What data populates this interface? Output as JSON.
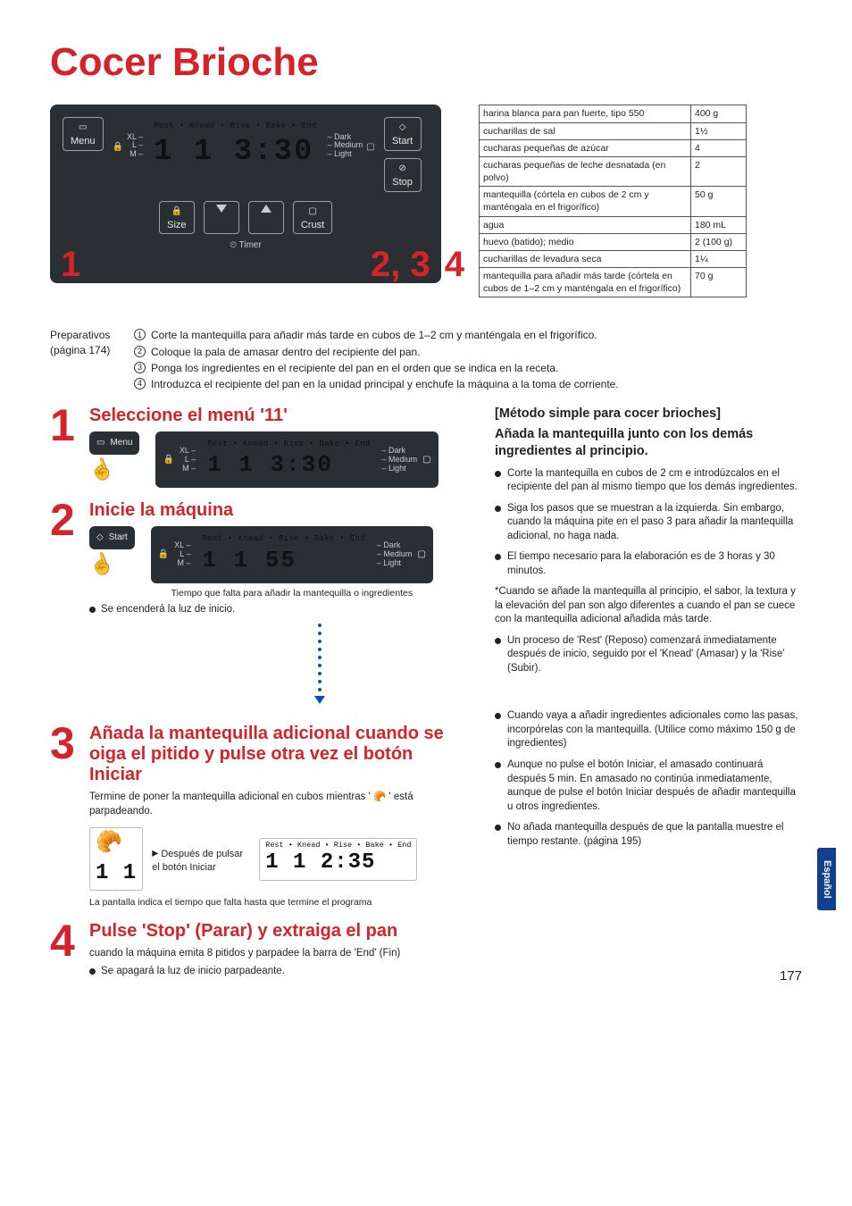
{
  "title": "Cocer Brioche",
  "panel": {
    "menu_label": "Menu",
    "size_label": "Size",
    "crust_label": "Crust",
    "start_label": "Start",
    "stop_label": "Stop",
    "timer_label": "Timer",
    "phase_text": "Rest • Knead • Rise • Bake • End",
    "size_opts_l": "XL –\nL –\nM –",
    "crust_opts_r": "– Dark\n– Medium\n– Light",
    "display_main": "1 1  3:30",
    "timer_icon_label": "⏲"
  },
  "big_nums": {
    "n1": "1",
    "n23": "2, 3",
    "n4": "4"
  },
  "ingredients": {
    "rows": [
      [
        "harina blanca para pan fuerte, tipo 550",
        "400 g"
      ],
      [
        "cucharillas de sal",
        "1½"
      ],
      [
        "cucharas pequeñas de azúcar",
        "4"
      ],
      [
        "cucharas pequeñas de leche desnatada (en polvo)",
        "2"
      ],
      [
        "mantequilla (córtela en cubos de 2 cm y manténgala en el frigorífico)",
        "50 g"
      ],
      [
        "agua",
        "180 mL"
      ],
      [
        "huevo (batido); medio",
        "2 (100 g)"
      ],
      [
        "cucharillas de levadura seca",
        "1¼"
      ],
      [
        "mantequilla para añadir más tarde (córtela en cubos de 1–2 cm y manténgala en el frigorífico)",
        "70 g"
      ]
    ]
  },
  "prep": {
    "label": "Preparativos",
    "page_ref": "(página 174)",
    "items": [
      "Corte la mantequilla para añadir más tarde en cubos de 1–2 cm y manténgala en el frigorífico.",
      "Coloque la pala de amasar dentro del recipiente del pan.",
      "Ponga los ingredientes en el recipiente del pan en el orden que se indica en la receta.",
      "Introduzca el recipiente del pan en la unidad principal y enchufe la máquina a la toma de corriente."
    ]
  },
  "steps": {
    "s1": {
      "num": "1",
      "h": "Seleccione el menú '11'",
      "lcd": "1 1  3:30"
    },
    "s2": {
      "num": "2",
      "h": "Inicie la máquina",
      "lcd": "1 1    55",
      "caption": "Tiempo que falta para añadir la mantequilla o ingredientes",
      "bullet": "Se encenderá la luz de inicio."
    },
    "s3": {
      "num": "3",
      "h": "Añada la mantequilla adicional cuando se oiga el pitido y pulse otra vez el botón Iniciar",
      "sub": "Termine de poner la mantequilla adicional en cubos mientras ' 🥐 ' está parpadeando.",
      "flow_label": "Después de pulsar el botón Iniciar",
      "lcd2_phase": "Rest • Knead • Rise • Bake • End",
      "lcd2": "1 1 2:35",
      "caption": "La pantalla indica el tiempo que falta hasta que termine el programa"
    },
    "s4": {
      "num": "4",
      "h": "Pulse 'Stop' (Parar) y extraiga el pan",
      "sub": "cuando la máquina emita 8 pitidos y parpadee la barra de 'End' (Fin)",
      "bullet": "Se apagará la luz de inicio parpadeante."
    }
  },
  "right": {
    "h1": "[Método simple para cocer brioches]",
    "h2": "Añada la mantequilla junto con los demás ingredientes al principio.",
    "b1": "Corte la mantequilla en cubos de 2 cm e introdúzcalos en el recipiente del pan al mismo tiempo que los demás ingredientes.",
    "b2": "Siga los pasos que se muestran a la izquierda. Sin embargo, cuando la máquina pite en el paso 3 para añadir la mantequilla adicional, no haga nada.",
    "b3": "El tiempo necesario para la elaboración es de 3 horas y 30 minutos.",
    "note": "*Cuando se añade la mantequilla al principio, el sabor, la textura y la elevación del pan son algo diferentes a cuando el pan se cuece con la mantequilla adicional añadida más tarde.",
    "b4": "Un proceso de 'Rest' (Reposo) comenzará inmediatamente después de inicio, seguido por el 'Knead' (Amasar) y la 'Rise' (Subir).",
    "b5": "Cuando vaya a añadir ingredientes adicionales como las pasas, incorpórelas con la mantequilla. (Utilice como máximo 150 g de ingredientes)",
    "b6": "Aunque no pulse el botón Iniciar, el amasado continuará después 5 min. En amasado no continúa inmediatamente, aunque de pulse el botón Iniciar después de añadir mantequilla u otros ingredientes.",
    "b7": "No añada mantequilla después de que la pantalla muestre el tiempo restante. (página 195)"
  },
  "side_tab": "Español",
  "page_number": "177"
}
